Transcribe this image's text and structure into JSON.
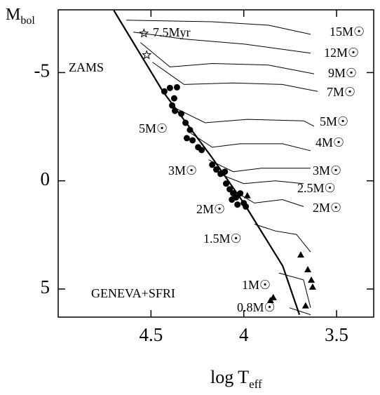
{
  "chart_data": {
    "type": "hr-diagram",
    "x_label": {
      "main": "log T",
      "sub": "eff"
    },
    "y_label": {
      "main": "M",
      "sub": "bol"
    },
    "xlim": [
      5.0,
      3.3
    ],
    "xticks": [
      4.5,
      4,
      3.5
    ],
    "ylim": [
      -7.9,
      6.3
    ],
    "y_reversed": true,
    "yticks": [
      -5,
      0,
      5
    ],
    "color": "#000000",
    "series": [
      {
        "kind": "line",
        "name": "ZAMS",
        "width": 2.2,
        "x": [
          4.7,
          4.436,
          4.17,
          4.0,
          3.79,
          3.7
        ],
        "values": [
          -7.87,
          -4.13,
          -1.06,
          1.03,
          3.94,
          6.19
        ]
      },
      {
        "kind": "line",
        "name": "15M☉",
        "width": 1,
        "x": [
          4.633,
          4.17,
          3.867,
          3.64
        ],
        "values": [
          -7.42,
          -7.35,
          -7.19,
          -6.77
        ]
      },
      {
        "kind": "line",
        "name": "12M☉",
        "width": 1,
        "x": [
          4.595,
          4.322,
          4.0,
          3.64
        ],
        "values": [
          -6.87,
          -6.55,
          -6.32,
          -5.9
        ]
      },
      {
        "kind": "line",
        "name": "9M☉",
        "width": 1,
        "x": [
          4.557,
          4.398,
          4.17,
          3.867,
          3.621
        ],
        "values": [
          -6.39,
          -5.26,
          -5.42,
          -5.35,
          -4.94
        ]
      },
      {
        "kind": "line",
        "name": "7M☉",
        "width": 1,
        "x": [
          4.492,
          4.322,
          4.057,
          3.792,
          3.602
        ],
        "values": [
          -5.48,
          -4.45,
          -4.52,
          -4.45,
          -4.13
        ]
      },
      {
        "kind": "line",
        "name": "5M☉",
        "width": 1,
        "x": [
          4.36,
          4.208,
          3.981,
          3.678,
          3.621
        ],
        "values": [
          -3.32,
          -2.68,
          -2.84,
          -2.77,
          -2.52
        ]
      },
      {
        "kind": "line",
        "name": "4M☉",
        "width": 1,
        "x": [
          4.284,
          4.17,
          4.019,
          3.792,
          3.64
        ],
        "values": [
          -2.19,
          -1.55,
          -1.71,
          -1.71,
          -1.39
        ]
      },
      {
        "kind": "line",
        "name": "3M☉",
        "width": 1,
        "x": [
          4.189,
          4.057,
          3.905,
          3.64
        ],
        "values": [
          -0.97,
          -0.42,
          -0.58,
          -0.58
        ]
      },
      {
        "kind": "line",
        "name": "2.5M☉",
        "width": 1,
        "x": [
          4.133,
          4.0,
          3.83,
          3.678
        ],
        "values": [
          -0.32,
          0.13,
          0.0,
          0.13
        ]
      },
      {
        "kind": "line",
        "name": "2M☉",
        "width": 1,
        "x": [
          4.057,
          3.943,
          3.792,
          3.678
        ],
        "values": [
          0.45,
          1.03,
          0.87,
          1.19
        ]
      },
      {
        "kind": "line",
        "name": "1.5M☉",
        "width": 1,
        "x": [
          3.943,
          3.83,
          3.716,
          3.64
        ],
        "values": [
          2.0,
          2.32,
          2.48,
          3.29
        ]
      },
      {
        "kind": "line",
        "name": "1M☉",
        "width": 1,
        "x": [
          3.811,
          3.678,
          3.64
        ],
        "values": [
          4.26,
          4.58,
          5.87
        ]
      },
      {
        "kind": "line",
        "name": "0.8M☉",
        "width": 1,
        "x": [
          3.754,
          3.64
        ],
        "values": [
          5.87,
          6.19
        ]
      },
      {
        "kind": "scatter",
        "marker": "circle",
        "x": [
          4.428,
          4.398,
          4.36,
          4.375,
          4.386,
          4.371,
          4.337,
          4.314,
          4.29,
          4.307,
          4.276,
          4.246,
          4.227,
          4.17,
          4.148,
          4.125,
          4.102,
          4.095,
          4.076,
          4.057,
          4.064,
          4.042,
          4.019,
          4.0,
          3.989,
          4.034
        ],
        "values": [
          -4.13,
          -4.29,
          -4.32,
          -3.81,
          -3.48,
          -3.23,
          -3.1,
          -2.68,
          -2.35,
          -1.97,
          -1.87,
          -1.55,
          -1.42,
          -0.74,
          -0.52,
          -0.32,
          -0.42,
          0.13,
          0.39,
          0.58,
          0.87,
          0.77,
          0.58,
          1.03,
          1.19,
          1.1
        ]
      },
      {
        "kind": "scatter",
        "marker": "triangle",
        "x": [
          3.981,
          3.693,
          3.655,
          3.636,
          3.629,
          3.667,
          3.856,
          3.841
        ],
        "values": [
          0.68,
          3.42,
          4.1,
          4.58,
          4.9,
          5.77,
          5.52,
          5.39
        ]
      },
      {
        "kind": "scatter",
        "marker": "star",
        "x": [
          4.538,
          4.523
        ],
        "values": [
          -6.81,
          -5.81
        ]
      }
    ],
    "annotations": [
      "7.5Myr",
      "5M☉",
      "3M☉",
      "2M☉",
      "GENEVA+SFRI"
    ]
  }
}
